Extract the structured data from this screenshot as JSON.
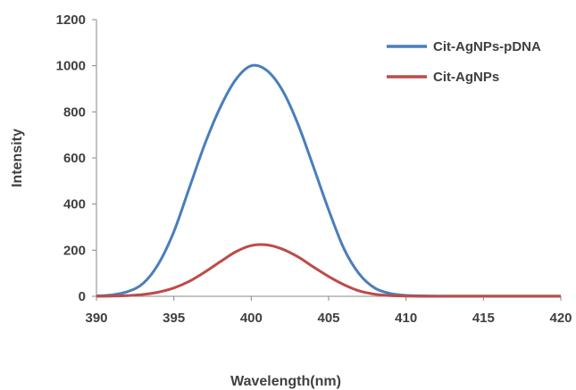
{
  "chart_data": {
    "type": "line",
    "xlabel": "Wavelength(nm)",
    "ylabel": "Intensity",
    "xlim": [
      390,
      420
    ],
    "ylim": [
      0,
      1200
    ],
    "xticks": [
      "390",
      "395",
      "400",
      "405",
      "410",
      "415",
      "420"
    ],
    "yticks": [
      "0",
      "200",
      "400",
      "600",
      "800",
      "1000",
      "1200"
    ],
    "grid": false,
    "legend": "top-right",
    "x": [
      390,
      391,
      392,
      393,
      394,
      395,
      396,
      397,
      398,
      399,
      400,
      401,
      402,
      403,
      404,
      405,
      406,
      407,
      408,
      409,
      410,
      411,
      412,
      413,
      414,
      415,
      416,
      417,
      418,
      419,
      420
    ],
    "series": [
      {
        "name": "Cit-AgNPs-pDNA",
        "color": "#4a7ebb",
        "values": [
          2,
          6,
          20,
          55,
          140,
          280,
          470,
          660,
          820,
          940,
          1000,
          980,
          895,
          750,
          565,
          375,
          205,
          95,
          35,
          12,
          4,
          2,
          1,
          1,
          1,
          1,
          1,
          1,
          1,
          1,
          1
        ]
      },
      {
        "name": "Cit-AgNPs",
        "color": "#be4b48",
        "values": [
          0,
          1,
          3,
          8,
          18,
          36,
          65,
          105,
          150,
          193,
          220,
          223,
          205,
          172,
          128,
          86,
          50,
          23,
          9,
          3,
          1,
          0,
          0,
          0,
          0,
          0,
          0,
          0,
          0,
          0,
          0
        ]
      }
    ]
  }
}
